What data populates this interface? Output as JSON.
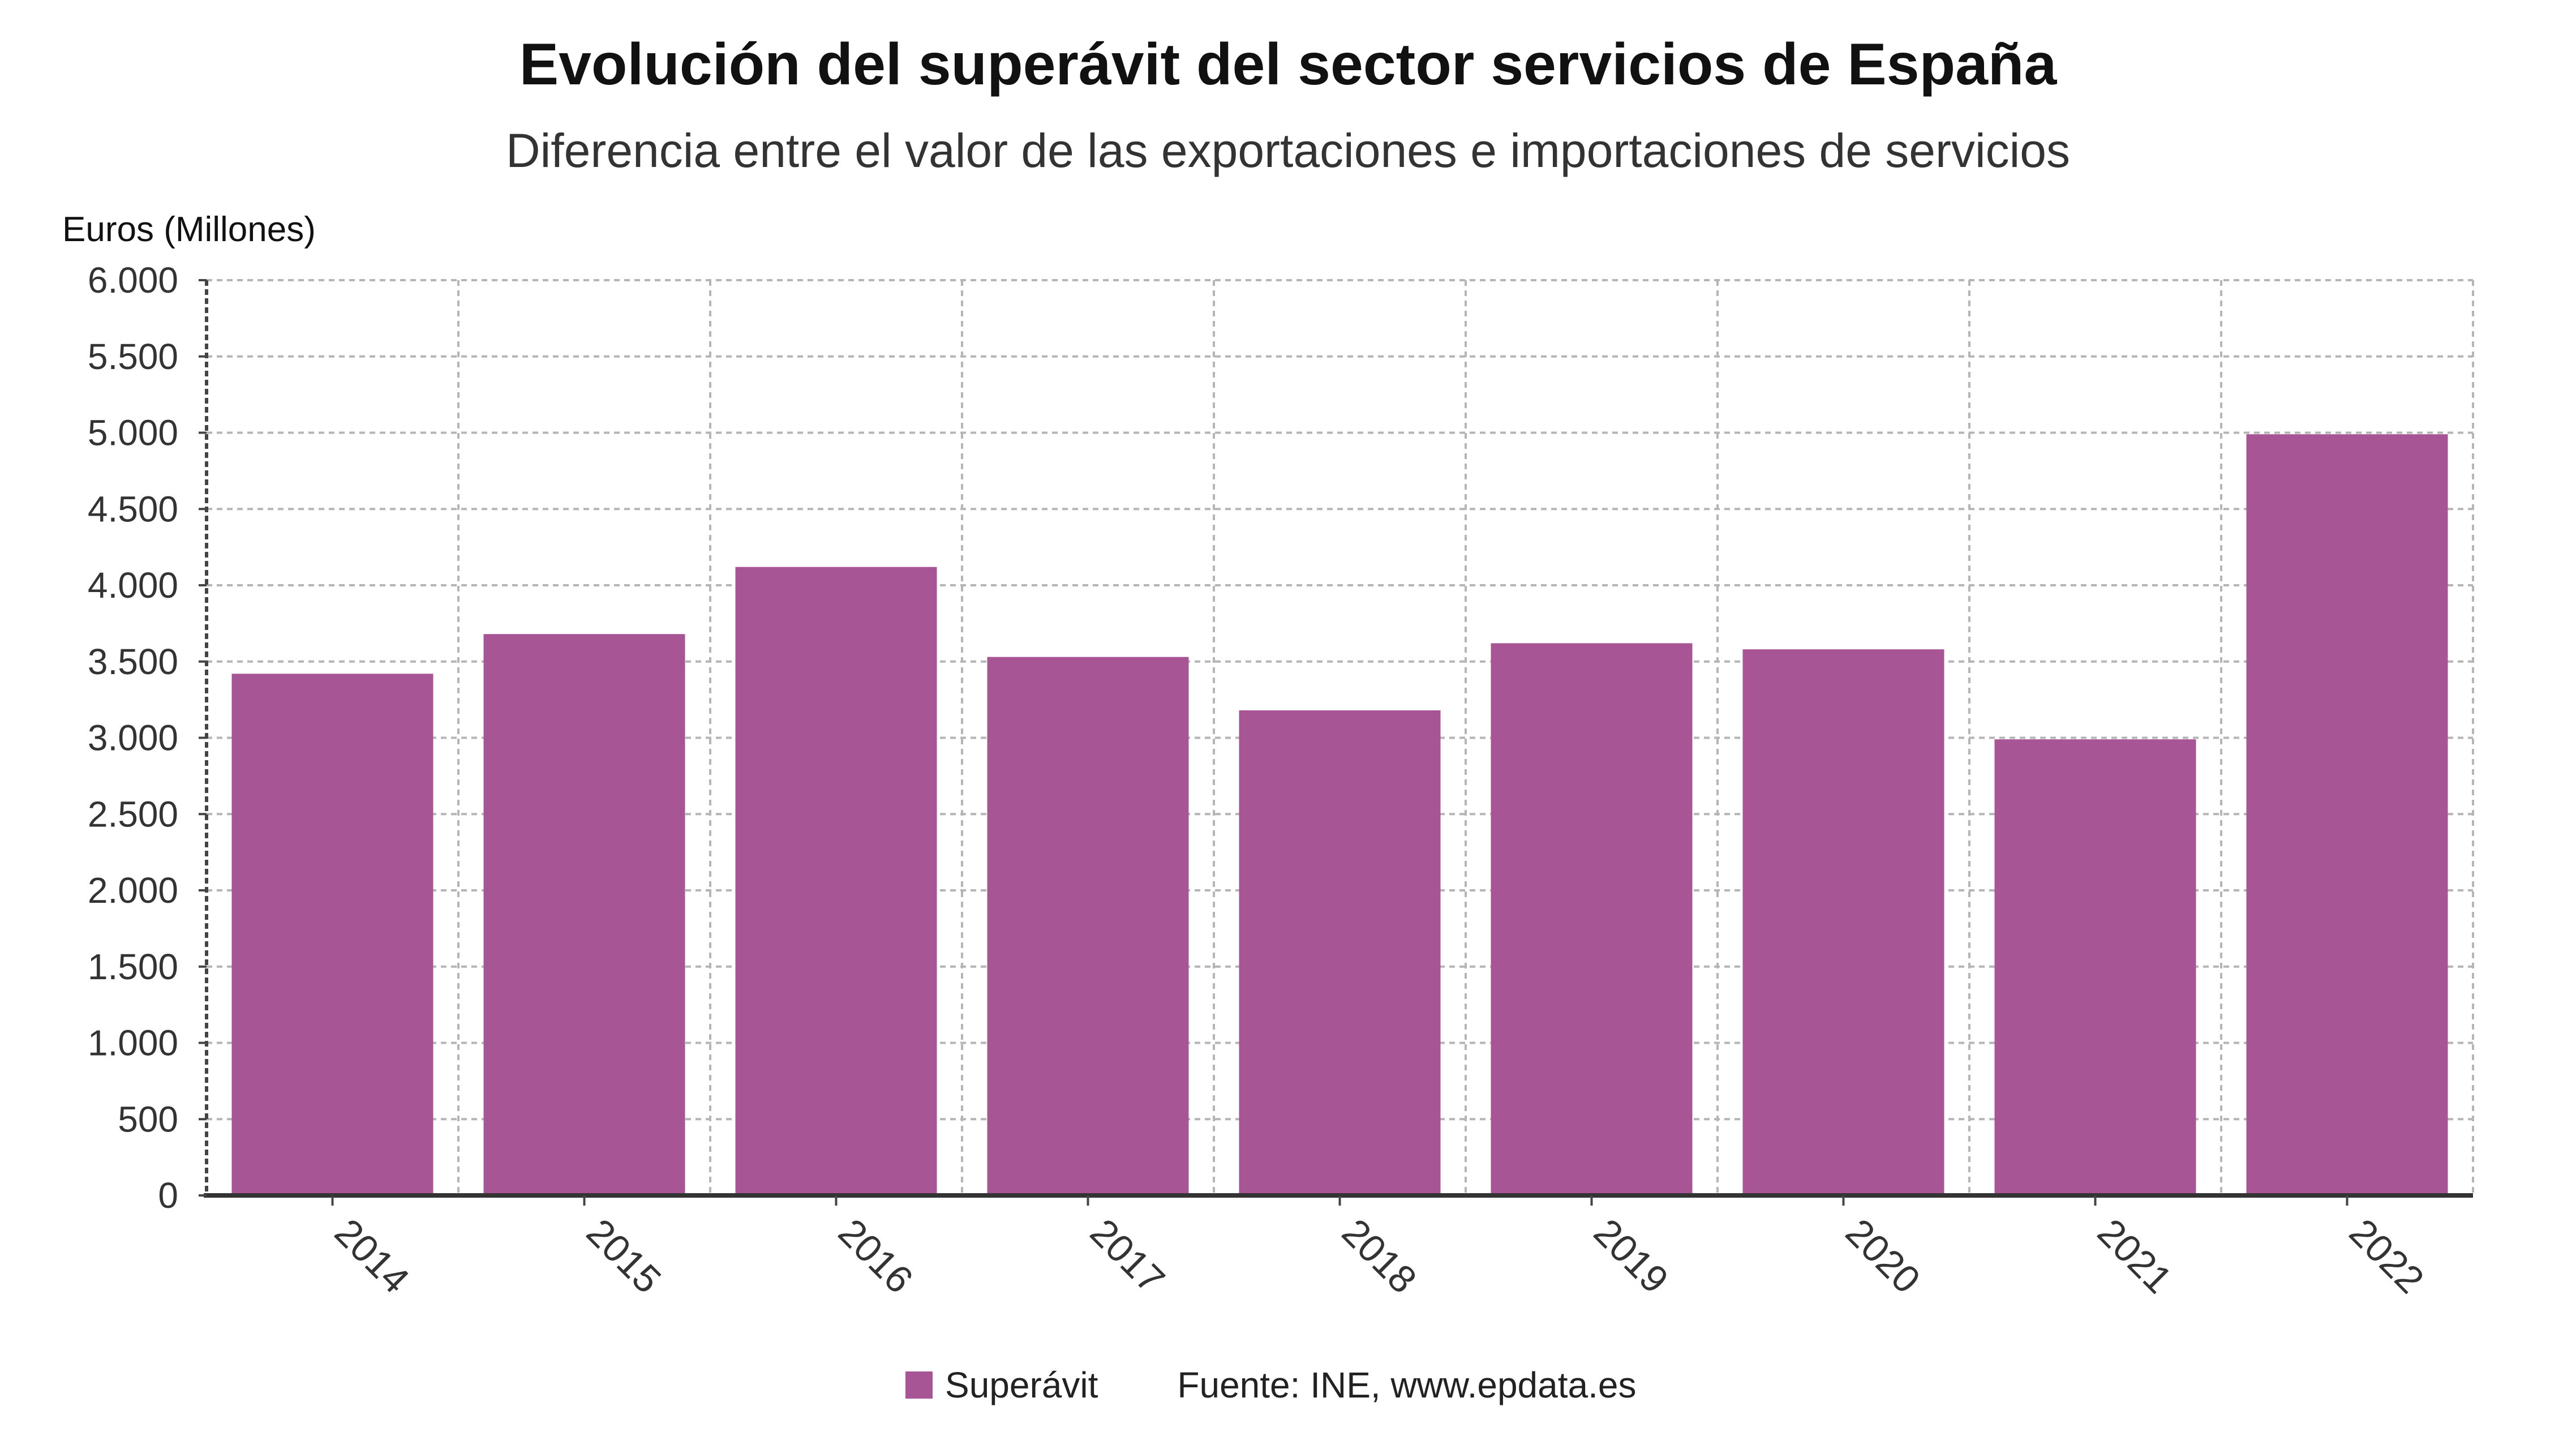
{
  "chart_data": {
    "type": "bar",
    "title": "Evolución del superávit del sector servicios de España",
    "subtitle": "Diferencia entre el valor de las exportaciones e importaciones de servicios",
    "ylabel": "Euros (Millones)",
    "categories": [
      "2014",
      "2015",
      "2016",
      "2017",
      "2018",
      "2019",
      "2020",
      "2021",
      "2022"
    ],
    "series": [
      {
        "name": "Superávit",
        "values": [
          3420,
          3680,
          4120,
          3530,
          3180,
          3620,
          3580,
          2990,
          4990
        ],
        "color": "#a85596"
      }
    ],
    "ylim": [
      0,
      6000
    ],
    "yticks": [
      0,
      500,
      1000,
      1500,
      2000,
      2500,
      3000,
      3500,
      4000,
      4500,
      5000,
      5500,
      6000
    ],
    "ytick_labels": [
      "0",
      "500",
      "1.000",
      "1.500",
      "2.000",
      "2.500",
      "3.000",
      "3.500",
      "4.000",
      "4.500",
      "5.000",
      "5.500",
      "6.000"
    ],
    "grid": true,
    "legend_position": "bottom-center"
  },
  "legend": {
    "label": "Superávit"
  },
  "source": "Fuente: INE, www.epdata.es"
}
